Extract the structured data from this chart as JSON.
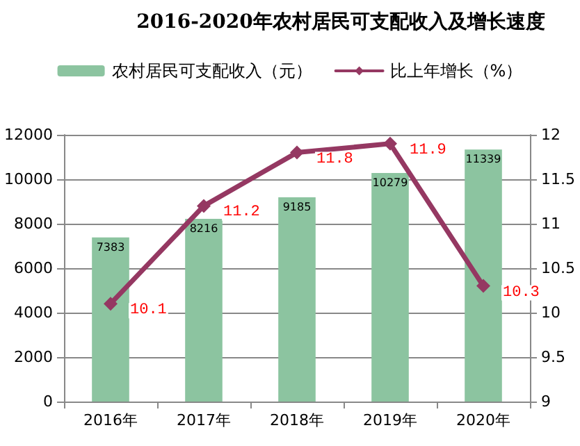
{
  "chart_data": {
    "type": "bar",
    "title": "2016-2020年农村居民可支配收入及增长速度",
    "categories": [
      "2016年",
      "2017年",
      "2018年",
      "2019年",
      "2020年"
    ],
    "series": [
      {
        "name": "农村居民可支配收入（元）",
        "type": "bar",
        "color": "#8cc4a0",
        "values": [
          7383,
          8216,
          9185,
          10279,
          11339
        ]
      },
      {
        "name": "比上年增长（%）",
        "type": "line",
        "axis": "y2",
        "color": "#953862",
        "values": [
          10.1,
          11.2,
          11.8,
          11.9,
          10.3
        ]
      }
    ],
    "ylim": [
      0,
      12000
    ],
    "yticks": [
      0,
      2000,
      4000,
      6000,
      8000,
      10000,
      12000
    ],
    "y2lim": [
      9,
      12
    ],
    "y2ticks": [
      9,
      9.5,
      10,
      10.5,
      11,
      11.5,
      12
    ],
    "grid": "y",
    "legend": "top",
    "marker": "diamond",
    "line_style": "solid",
    "data_labels": true
  }
}
